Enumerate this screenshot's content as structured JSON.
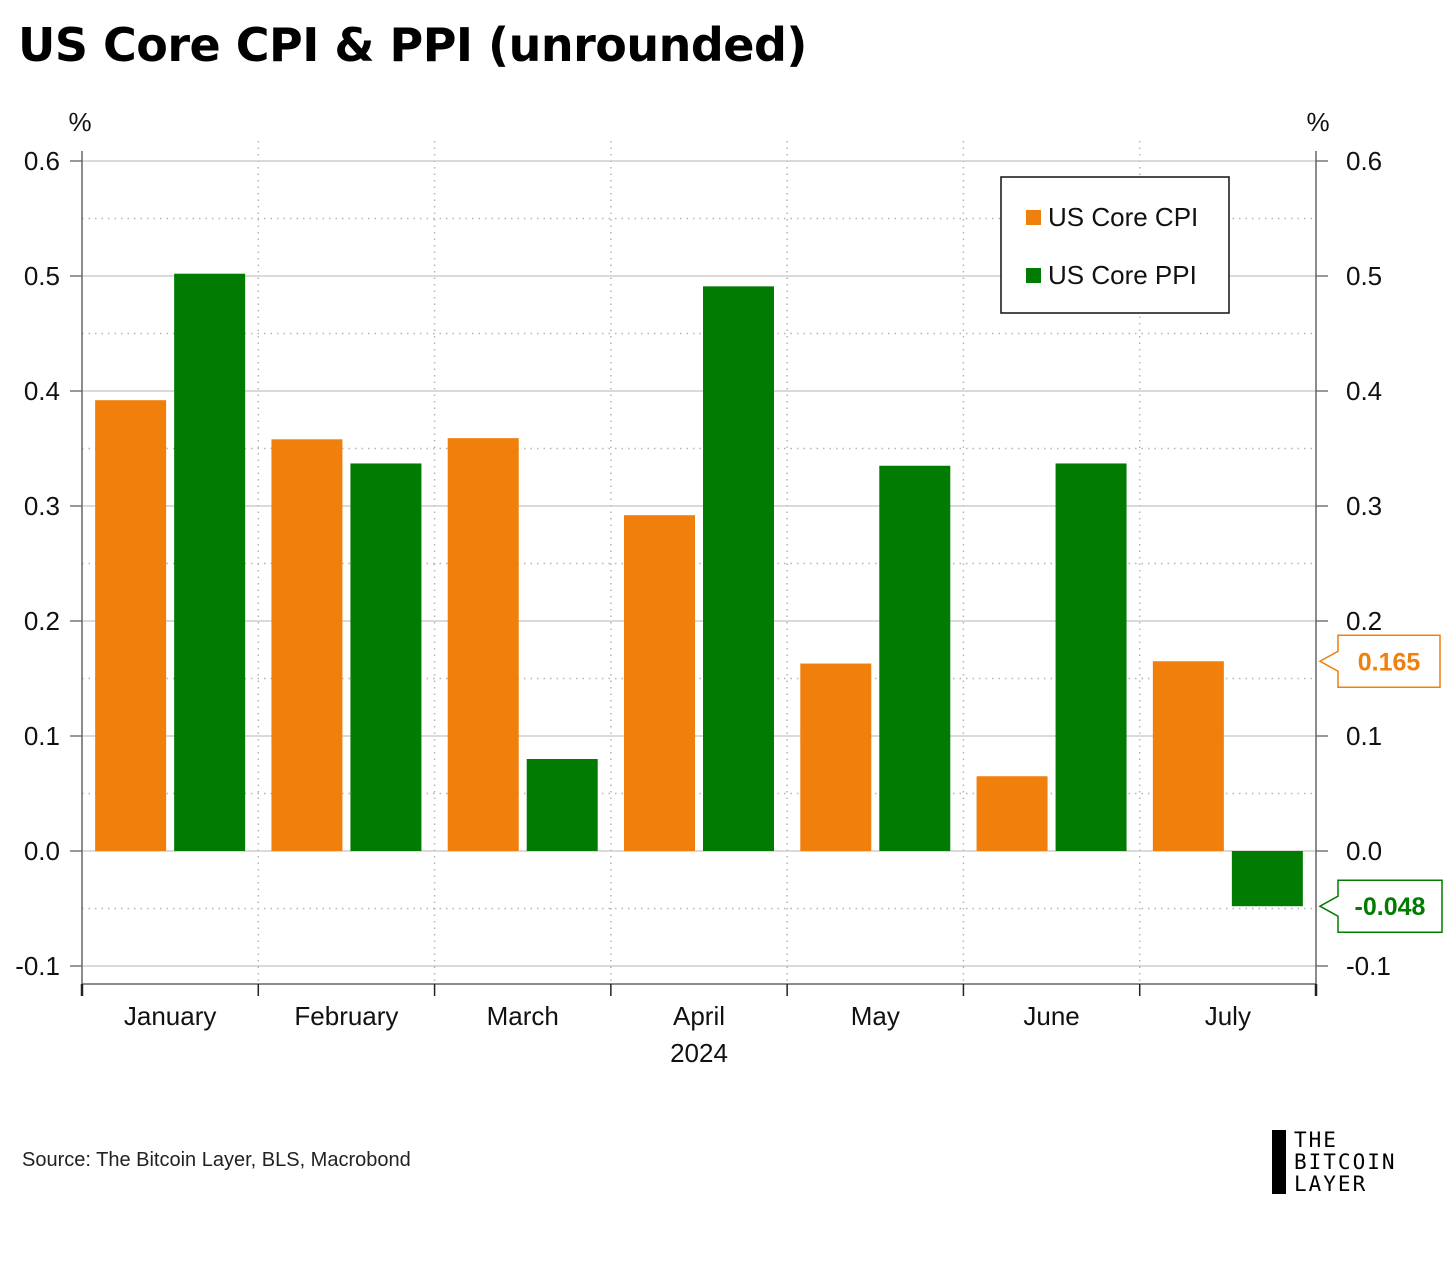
{
  "title": "US Core CPI & PPI (unrounded)",
  "source": "Source: The Bitcoin Layer, BLS, Macrobond",
  "logo": {
    "lines": [
      "THE",
      "BITCOIN",
      "LAYER"
    ]
  },
  "chart_data": {
    "type": "bar",
    "categories": [
      "January",
      "February",
      "March",
      "April",
      "May",
      "June",
      "July"
    ],
    "xlabel_year": "2024",
    "series": [
      {
        "name": "US Core CPI",
        "color": "#f07f0c",
        "values": [
          0.392,
          0.358,
          0.359,
          0.292,
          0.163,
          0.065,
          0.165
        ]
      },
      {
        "name": "US Core PPI",
        "color": "#027b02",
        "values": [
          0.502,
          0.337,
          0.08,
          0.491,
          0.335,
          0.337,
          -0.048
        ]
      }
    ],
    "ylim": [
      -0.1,
      0.6
    ],
    "yticks": [
      "-0.1",
      "0.0",
      "0.1",
      "0.2",
      "0.3",
      "0.4",
      "0.5",
      "0.6"
    ],
    "ylabel_left": "%",
    "ylabel_right": "%",
    "legend_position": "top-right",
    "value_callouts": [
      {
        "text": "0.165",
        "series": 0,
        "color": "#f07f0c"
      },
      {
        "text": "-0.048",
        "series": 1,
        "color": "#027b02"
      }
    ],
    "grid": true
  }
}
